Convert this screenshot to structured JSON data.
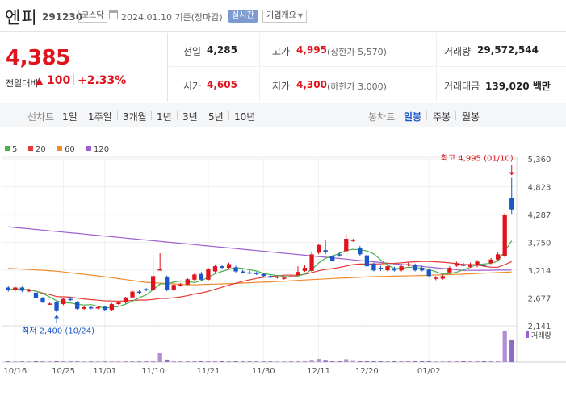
{
  "header": {
    "name": "엔피",
    "code": "291230",
    "market": "코스닥",
    "date": "2024.01.10 기준(장마감)",
    "realtime": "실시간",
    "overview": "기업개요",
    "calendar_icon": "calendar-icon"
  },
  "price": {
    "current": "4,385",
    "change_label": "전일대비",
    "change_arrow": "▲",
    "change_value": "100",
    "separator": "|",
    "change_pct": "+2.33%"
  },
  "stats": {
    "prev_close_label": "전일",
    "prev_close": "4,285",
    "high_label": "고가",
    "high": "4,995",
    "upper_limit": "(상한가 5,570)",
    "volume_label": "거래량",
    "volume": "29,572,544",
    "open_label": "시가",
    "open": "4,605",
    "low_label": "저가",
    "low": "4,300",
    "lower_limit": "(하한가 3,000)",
    "amount_label": "거래대금",
    "amount": "139,020 백만"
  },
  "tabs": {
    "line_label": "선차트",
    "line": [
      "1일",
      "1주일",
      "3개월",
      "1년",
      "3년",
      "5년",
      "10년"
    ],
    "candle_label": "봉차트",
    "candle": [
      "일봉",
      "주봉",
      "월봉"
    ],
    "selected_candle": "일봉"
  },
  "chart_data": {
    "type": "candlestick",
    "legend": [
      {
        "name": "5",
        "color": "#4caf50"
      },
      {
        "name": "20",
        "color": "#e53935"
      },
      {
        "name": "60",
        "color": "#f08c2c"
      },
      {
        "name": "120",
        "color": "#9c5fd1"
      }
    ],
    "y_ticks": [
      "5,360",
      "4,823",
      "4,287",
      "3,750",
      "3,214",
      "2,677",
      "2,141"
    ],
    "ylim": [
      2141,
      5360
    ],
    "x_ticks": [
      "10/16",
      "10/25",
      "11/01",
      "11/10",
      "11/21",
      "11/30",
      "12/11",
      "12/20",
      "01/02"
    ],
    "max_label": "최고 4,995 (01/10)",
    "min_label": "최저 2,400 (10/24)",
    "volume_label": "거래량",
    "up_color": "#e0141e",
    "down_color": "#1a57c9",
    "candles": [
      {
        "o": 2880,
        "c": 2830,
        "h": 2920,
        "l": 2800
      },
      {
        "o": 2830,
        "c": 2880,
        "h": 2910,
        "l": 2800
      },
      {
        "o": 2880,
        "c": 2820,
        "h": 2900,
        "l": 2790
      },
      {
        "o": 2820,
        "c": 2830,
        "h": 2860,
        "l": 2790
      },
      {
        "o": 2780,
        "c": 2680,
        "h": 2800,
        "l": 2660
      },
      {
        "o": 2680,
        "c": 2600,
        "h": 2700,
        "l": 2580
      },
      {
        "o": 2570,
        "c": 2570,
        "h": 2590,
        "l": 2550
      },
      {
        "o": 2600,
        "c": 2440,
        "h": 2620,
        "l": 2400
      },
      {
        "o": 2560,
        "c": 2660,
        "h": 2680,
        "l": 2540
      },
      {
        "o": 2660,
        "c": 2640,
        "h": 2700,
        "l": 2620
      },
      {
        "o": 2600,
        "c": 2470,
        "h": 2620,
        "l": 2450
      },
      {
        "o": 2470,
        "c": 2500,
        "h": 2520,
        "l": 2450
      },
      {
        "o": 2500,
        "c": 2480,
        "h": 2530,
        "l": 2460
      },
      {
        "o": 2480,
        "c": 2500,
        "h": 2520,
        "l": 2460
      },
      {
        "o": 2510,
        "c": 2450,
        "h": 2530,
        "l": 2430
      },
      {
        "o": 2450,
        "c": 2560,
        "h": 2580,
        "l": 2430
      },
      {
        "o": 2560,
        "c": 2590,
        "h": 2620,
        "l": 2540
      },
      {
        "o": 2590,
        "c": 2690,
        "h": 2700,
        "l": 2570
      },
      {
        "o": 2690,
        "c": 2800,
        "h": 2820,
        "l": 2680
      },
      {
        "o": 2800,
        "c": 2780,
        "h": 2830,
        "l": 2760
      },
      {
        "o": 2850,
        "c": 2830,
        "h": 2870,
        "l": 2810
      },
      {
        "o": 2830,
        "c": 3100,
        "h": 3430,
        "l": 2820
      },
      {
        "o": 3230,
        "c": 3230,
        "h": 3540,
        "l": 3210
      },
      {
        "o": 3090,
        "c": 2830,
        "h": 3110,
        "l": 2810
      },
      {
        "o": 2830,
        "c": 2930,
        "h": 3000,
        "l": 2800
      },
      {
        "o": 2930,
        "c": 2940,
        "h": 2970,
        "l": 2900
      },
      {
        "o": 2940,
        "c": 3040,
        "h": 3060,
        "l": 2920
      },
      {
        "o": 3030,
        "c": 3130,
        "h": 3150,
        "l": 3010
      },
      {
        "o": 3140,
        "c": 3030,
        "h": 3180,
        "l": 3000
      },
      {
        "o": 3030,
        "c": 3240,
        "h": 3260,
        "l": 3010
      },
      {
        "o": 3190,
        "c": 3290,
        "h": 3320,
        "l": 3170
      },
      {
        "o": 3290,
        "c": 3260,
        "h": 3310,
        "l": 3230
      },
      {
        "o": 3260,
        "c": 3330,
        "h": 3360,
        "l": 3240
      },
      {
        "o": 3270,
        "c": 3190,
        "h": 3300,
        "l": 3170
      },
      {
        "o": 3190,
        "c": 3170,
        "h": 3220,
        "l": 3150
      },
      {
        "o": 3170,
        "c": 3160,
        "h": 3200,
        "l": 3140
      },
      {
        "o": 3160,
        "c": 3140,
        "h": 3180,
        "l": 3120
      },
      {
        "o": 3140,
        "c": 3100,
        "h": 3160,
        "l": 3080
      },
      {
        "o": 3100,
        "c": 3070,
        "h": 3130,
        "l": 3050
      },
      {
        "o": 3070,
        "c": 3090,
        "h": 3110,
        "l": 3050
      },
      {
        "o": 3050,
        "c": 3070,
        "h": 3090,
        "l": 3030
      },
      {
        "o": 3080,
        "c": 3100,
        "h": 3160,
        "l": 3050
      },
      {
        "o": 3120,
        "c": 3180,
        "h": 3290,
        "l": 3100
      },
      {
        "o": 3200,
        "c": 3260,
        "h": 3320,
        "l": 3180
      },
      {
        "o": 3200,
        "c": 3520,
        "h": 3560,
        "l": 3180
      },
      {
        "o": 3550,
        "c": 3700,
        "h": 3720,
        "l": 3520
      },
      {
        "o": 3600,
        "c": 3560,
        "h": 3800,
        "l": 3520
      },
      {
        "o": 3480,
        "c": 3400,
        "h": 3500,
        "l": 3380
      },
      {
        "o": 3520,
        "c": 3500,
        "h": 3570,
        "l": 3470
      },
      {
        "o": 3580,
        "c": 3820,
        "h": 3900,
        "l": 3560
      },
      {
        "o": 3800,
        "c": 3800,
        "h": 3820,
        "l": 3760
      },
      {
        "o": 3650,
        "c": 3520,
        "h": 3680,
        "l": 3480
      },
      {
        "o": 3500,
        "c": 3290,
        "h": 3520,
        "l": 3270
      },
      {
        "o": 3340,
        "c": 3210,
        "h": 3360,
        "l": 3190
      },
      {
        "o": 3260,
        "c": 3240,
        "h": 3300,
        "l": 3200
      },
      {
        "o": 3210,
        "c": 3290,
        "h": 3310,
        "l": 3190
      },
      {
        "o": 3240,
        "c": 3210,
        "h": 3280,
        "l": 3190
      },
      {
        "o": 3210,
        "c": 3290,
        "h": 3320,
        "l": 3190
      },
      {
        "o": 3310,
        "c": 3330,
        "h": 3360,
        "l": 3290
      },
      {
        "o": 3310,
        "c": 3210,
        "h": 3340,
        "l": 3190
      },
      {
        "o": 3260,
        "c": 3210,
        "h": 3300,
        "l": 3190
      },
      {
        "o": 3220,
        "c": 3100,
        "h": 3250,
        "l": 3080
      },
      {
        "o": 3050,
        "c": 3070,
        "h": 3100,
        "l": 3020
      },
      {
        "o": 3050,
        "c": 3100,
        "h": 3130,
        "l": 3030
      },
      {
        "o": 3170,
        "c": 3260,
        "h": 3290,
        "l": 3150
      },
      {
        "o": 3300,
        "c": 3350,
        "h": 3380,
        "l": 3280
      },
      {
        "o": 3320,
        "c": 3310,
        "h": 3360,
        "l": 3290
      },
      {
        "o": 3280,
        "c": 3330,
        "h": 3360,
        "l": 3260
      },
      {
        "o": 3300,
        "c": 3380,
        "h": 3410,
        "l": 3270
      },
      {
        "o": 3320,
        "c": 3300,
        "h": 3360,
        "l": 3280
      },
      {
        "o": 3350,
        "c": 3420,
        "h": 3450,
        "l": 3330
      },
      {
        "o": 3420,
        "c": 3520,
        "h": 3560,
        "l": 3400
      },
      {
        "o": 3480,
        "c": 4285,
        "h": 4320,
        "l": 3460
      },
      {
        "o": 4605,
        "c": 4385,
        "h": 4995,
        "l": 4300
      }
    ],
    "volume": [
      3,
      2,
      2,
      2,
      3,
      2,
      2,
      4,
      3,
      2,
      2,
      2,
      2,
      2,
      2,
      2,
      2,
      3,
      3,
      2,
      2,
      5,
      28,
      8,
      4,
      3,
      3,
      3,
      3,
      4,
      3,
      3,
      3,
      3,
      2,
      2,
      2,
      2,
      2,
      2,
      2,
      3,
      3,
      3,
      7,
      10,
      7,
      5,
      5,
      9,
      6,
      4,
      4,
      3,
      3,
      3,
      3,
      3,
      4,
      3,
      3,
      3,
      2,
      2,
      3,
      3,
      3,
      3,
      3,
      3,
      3,
      4,
      100,
      72
    ]
  }
}
